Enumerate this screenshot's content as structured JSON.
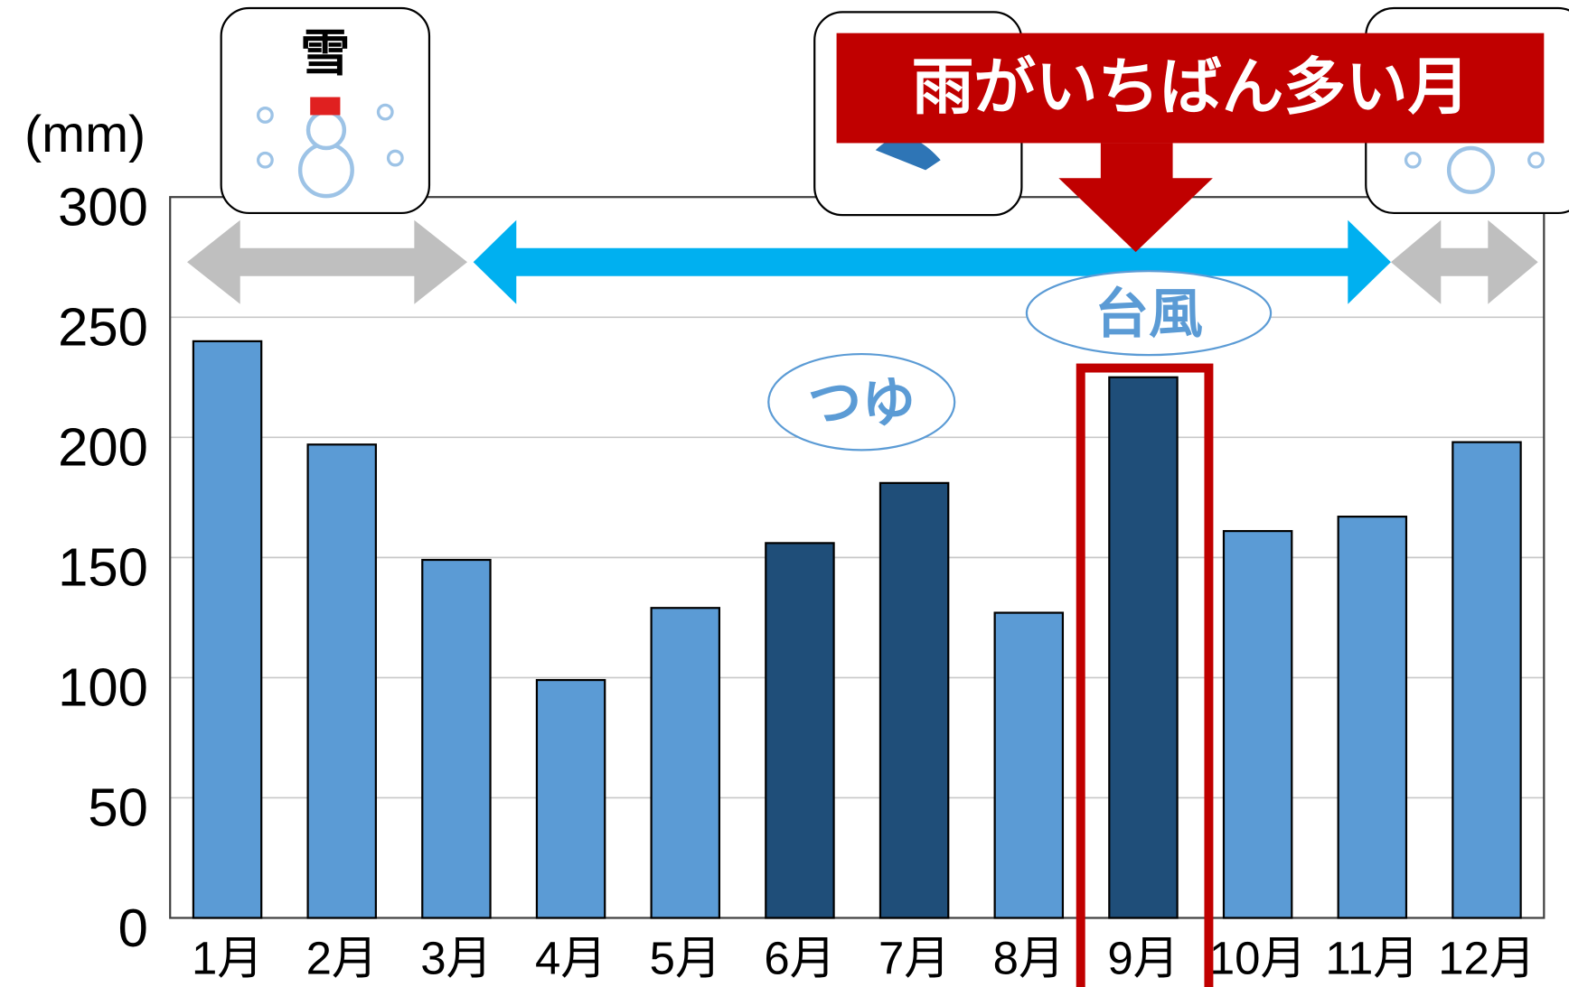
{
  "chart_data": {
    "type": "bar",
    "y_label": "(mm)",
    "categories": [
      "1月",
      "2月",
      "3月",
      "4月",
      "5月",
      "6月",
      "7月",
      "8月",
      "9月",
      "10月",
      "11月",
      "12月"
    ],
    "values": [
      240,
      197,
      149,
      99,
      129,
      156,
      181,
      127,
      225,
      161,
      167,
      198
    ],
    "colors": [
      "#5b9bd5",
      "#5b9bd5",
      "#5b9bd5",
      "#5b9bd5",
      "#5b9bd5",
      "#1f4e79",
      "#1f4e79",
      "#5b9bd5",
      "#1f4e79",
      "#5b9bd5",
      "#5b9bd5",
      "#5b9bd5"
    ],
    "ylim": [
      0,
      300
    ],
    "yticks": [
      0,
      50,
      100,
      150,
      200,
      250,
      300
    ],
    "grid": true,
    "annotations": {
      "snow": "雪",
      "banner": "雨がいちばん多い月",
      "typhoon": "台風",
      "rainy_season": "つゆ"
    }
  }
}
